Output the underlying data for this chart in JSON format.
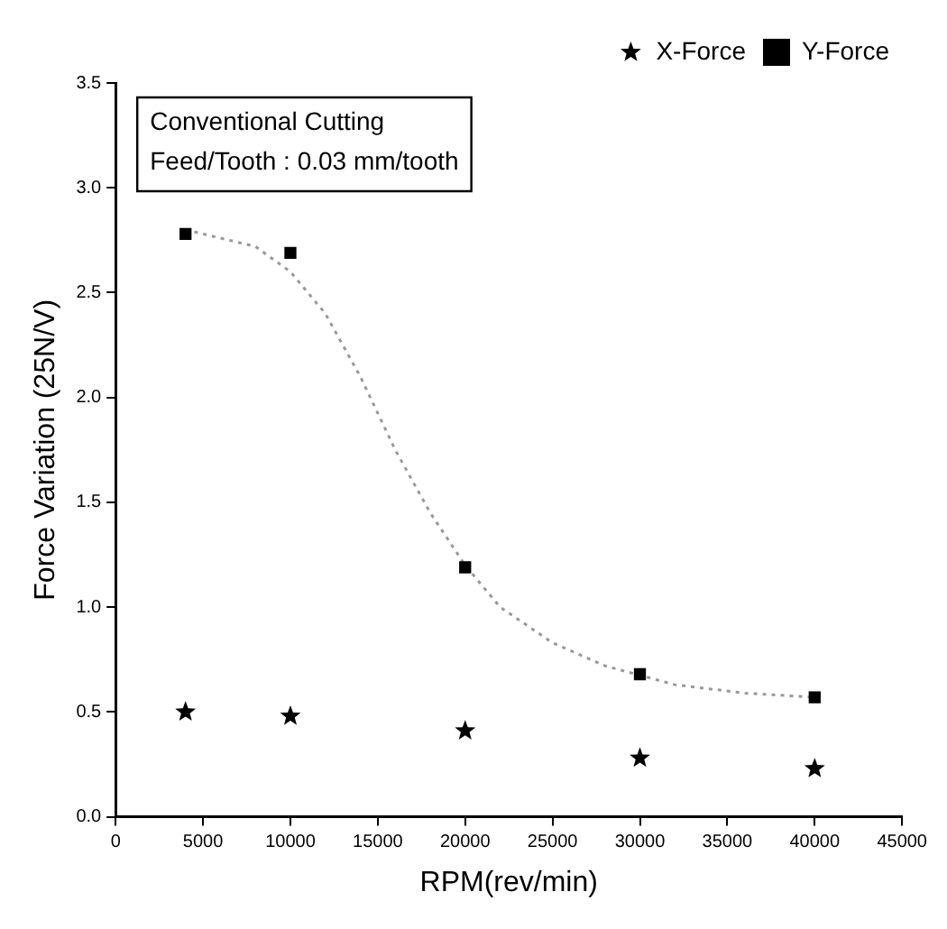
{
  "chart_data": {
    "type": "scatter",
    "xlabel": "RPM(rev/min)",
    "ylabel": "Force Variation (25N/V)",
    "annotations": [
      "Conventional Cutting",
      "Feed/Tooth : 0.03 mm/tooth"
    ],
    "legend": "top right",
    "xlim": [
      0,
      45000
    ],
    "xticks": [
      0,
      5000,
      10000,
      15000,
      20000,
      25000,
      30000,
      35000,
      40000,
      45000
    ],
    "ylim": [
      0,
      3.5
    ],
    "yticks": [
      {
        "value": 0,
        "label": "0.0"
      },
      0.5,
      {
        "value": 1,
        "label": "1.0"
      },
      1.5,
      {
        "value": 2,
        "label": "2.0"
      },
      2.5,
      {
        "value": 3,
        "label": "3.0"
      },
      3.5
    ],
    "series": [
      {
        "name": "X-Force",
        "color": "#000000",
        "marker": "star",
        "x": [
          4000,
          10000,
          20000,
          30000,
          40000
        ],
        "values": [
          0.5,
          0.48,
          0.41,
          0.28,
          0.23
        ]
      },
      {
        "name": "Y-Force",
        "color": "#000000",
        "marker": "square",
        "x": [
          4000,
          10000,
          20000,
          30000,
          40000
        ],
        "values": [
          2.78,
          2.69,
          1.19,
          0.68,
          0.57
        ]
      },
      {
        "type": "line",
        "color": "#999999",
        "line_style": "dotted",
        "marker": "none",
        "x": [
          4000,
          8000,
          10000,
          12000,
          14000,
          16000,
          18000,
          20000,
          22000,
          25000,
          28000,
          32000,
          36000,
          40000
        ],
        "values": [
          2.8,
          2.72,
          2.6,
          2.4,
          2.1,
          1.75,
          1.45,
          1.2,
          1.0,
          0.83,
          0.72,
          0.63,
          0.59,
          0.57
        ]
      }
    ]
  }
}
